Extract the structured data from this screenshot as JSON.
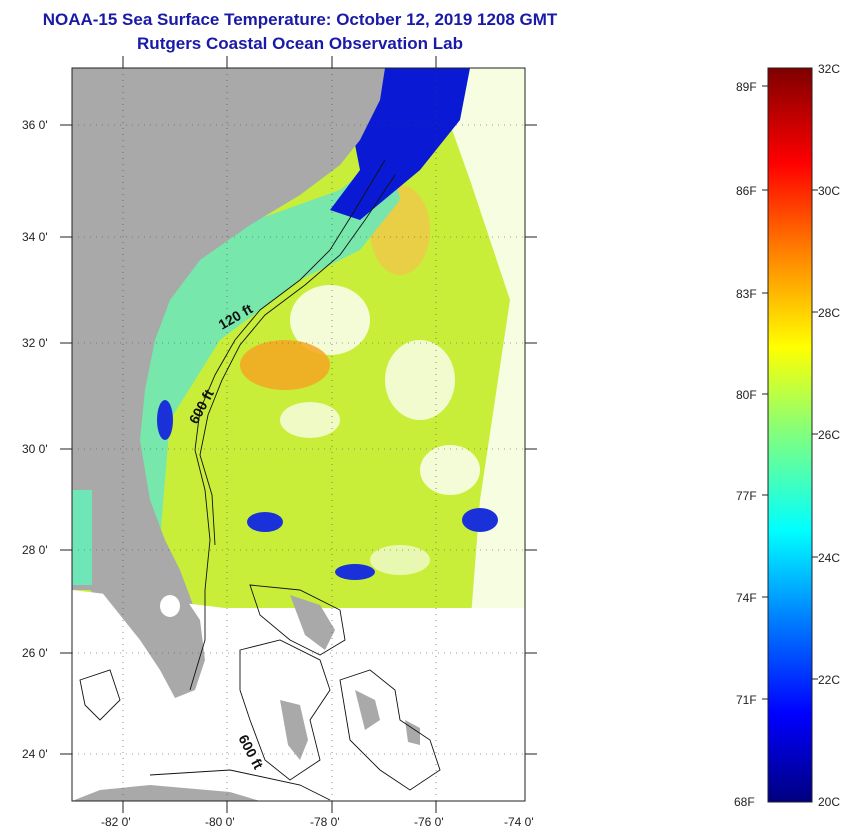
{
  "title": {
    "line1": "NOAA-15 Sea Surface Temperature:  October 12, 2019 1208 GMT",
    "line2": "Rutgers Coastal Ocean Observation Lab"
  },
  "axes": {
    "lat_labels": [
      "36 0'",
      "34 0'",
      "32 0'",
      "30 0'",
      "28 0'",
      "26 0'",
      "24 0'"
    ],
    "lon_labels": [
      "-82 0'",
      "-80 0'",
      "-78 0'",
      "-76 0'",
      "-74 0'"
    ]
  },
  "contours": {
    "label_120": "120 ft",
    "label_600a": "600 ft",
    "label_600b": "600 ft"
  },
  "colorbar": {
    "fahrenheit": [
      "89F",
      "86F",
      "83F",
      "80F",
      "77F",
      "74F",
      "71F",
      "68F"
    ],
    "celsius": [
      "32C",
      "30C",
      "28C",
      "26C",
      "24C",
      "22C",
      "20C"
    ]
  },
  "colors": {
    "land": "#a9a9a9",
    "title": "#1a1aa8"
  }
}
